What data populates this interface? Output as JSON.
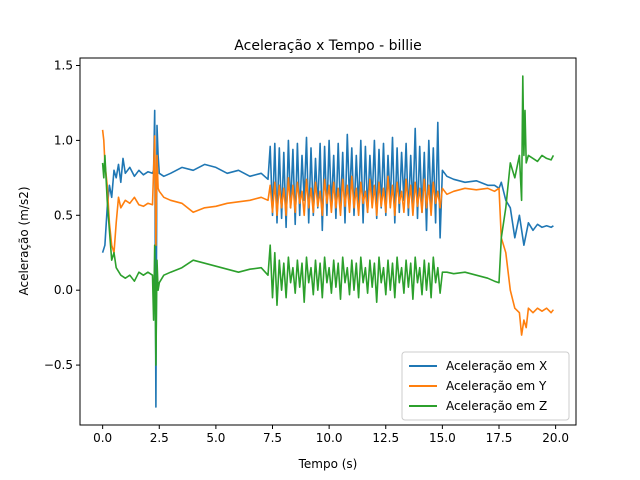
{
  "chart_data": {
    "type": "line",
    "title": "Aceleração x Tempo - billie",
    "xlabel": "Tempo (s)",
    "ylabel": "Aceleração (m/s2)",
    "xlim": [
      -1.0,
      20.9
    ],
    "ylim": [
      -0.9,
      1.55
    ],
    "xticks": [
      0.0,
      2.5,
      5.0,
      7.5,
      10.0,
      12.5,
      15.0,
      17.5,
      20.0
    ],
    "xtick_labels": [
      "0.0",
      "2.5",
      "5.0",
      "7.5",
      "10.0",
      "12.5",
      "15.0",
      "17.5",
      "20.0"
    ],
    "yticks": [
      -0.5,
      0.0,
      0.5,
      1.0,
      1.5
    ],
    "ytick_labels": [
      "−0.5",
      "0.0",
      "0.5",
      "1.0",
      "1.5"
    ],
    "grid": false,
    "legend_position": "lower-right",
    "series": [
      {
        "name": "Aceleração em X",
        "color": "#1f77b4",
        "x": [
          0.0,
          0.1,
          0.2,
          0.3,
          0.4,
          0.5,
          0.6,
          0.7,
          0.8,
          0.9,
          1.0,
          1.2,
          1.4,
          1.6,
          1.8,
          2.0,
          2.2,
          2.25,
          2.3,
          2.35,
          2.4,
          2.45,
          2.5,
          2.7,
          3.0,
          3.5,
          4.0,
          4.5,
          5.0,
          5.5,
          6.0,
          6.5,
          7.0,
          7.3,
          7.4,
          7.5,
          7.6,
          7.7,
          7.8,
          7.9,
          8.0,
          8.1,
          8.2,
          8.3,
          8.4,
          8.5,
          8.6,
          8.7,
          8.8,
          8.9,
          9.0,
          9.1,
          9.2,
          9.3,
          9.4,
          9.5,
          9.6,
          9.7,
          9.8,
          9.9,
          10.0,
          10.1,
          10.2,
          10.3,
          10.4,
          10.5,
          10.6,
          10.7,
          10.8,
          10.9,
          11.0,
          11.1,
          11.2,
          11.3,
          11.4,
          11.5,
          11.6,
          11.7,
          11.8,
          11.9,
          12.0,
          12.1,
          12.2,
          12.3,
          12.4,
          12.5,
          12.6,
          12.7,
          12.8,
          12.9,
          13.0,
          13.1,
          13.2,
          13.3,
          13.4,
          13.5,
          13.6,
          13.7,
          13.8,
          13.9,
          14.0,
          14.1,
          14.2,
          14.3,
          14.4,
          14.5,
          14.6,
          14.7,
          14.8,
          14.9,
          15.0,
          15.2,
          15.5,
          16.0,
          16.5,
          17.0,
          17.3,
          17.5,
          17.6,
          17.8,
          18.0,
          18.2,
          18.4,
          18.6,
          18.8,
          19.0,
          19.2,
          19.4,
          19.6,
          19.8,
          19.9
        ],
        "y": [
          0.25,
          0.3,
          0.55,
          0.7,
          0.62,
          0.8,
          0.75,
          0.84,
          0.72,
          0.88,
          0.78,
          0.82,
          0.76,
          0.8,
          0.77,
          0.79,
          0.78,
          0.8,
          1.2,
          -0.78,
          1.1,
          0.9,
          0.78,
          0.76,
          0.78,
          0.82,
          0.8,
          0.84,
          0.82,
          0.78,
          0.8,
          0.76,
          0.78,
          0.74,
          0.96,
          0.5,
          0.98,
          0.45,
          0.95,
          0.48,
          0.92,
          0.42,
          1.0,
          0.55,
          0.94,
          0.44,
          0.98,
          0.5,
          0.9,
          0.6,
          1.02,
          0.45,
          0.95,
          0.5,
          0.88,
          0.55,
          0.98,
          0.4,
          0.96,
          0.5,
          1.0,
          0.55,
          0.9,
          0.48,
          0.98,
          0.52,
          0.92,
          0.45,
          1.04,
          0.6,
          0.95,
          0.5,
          0.9,
          0.55,
          1.0,
          0.45,
          0.96,
          0.52,
          0.9,
          0.6,
          1.0,
          0.48,
          0.94,
          0.55,
          0.98,
          0.5,
          0.9,
          0.58,
          1.02,
          0.45,
          0.95,
          0.52,
          0.92,
          0.6,
          0.98,
          0.5,
          0.9,
          0.55,
          1.08,
          0.48,
          0.96,
          0.52,
          0.92,
          0.4,
          1.0,
          0.55,
          0.95,
          0.45,
          1.12,
          0.35,
          0.8,
          0.76,
          0.74,
          0.72,
          0.73,
          0.7,
          0.7,
          0.68,
          0.72,
          0.6,
          0.55,
          0.35,
          0.5,
          0.3,
          0.45,
          0.4,
          0.44,
          0.42,
          0.43,
          0.42,
          0.43
        ]
      },
      {
        "name": "Aceleração em Y",
        "color": "#ff7f0e",
        "x": [
          0.0,
          0.05,
          0.1,
          0.2,
          0.3,
          0.4,
          0.5,
          0.6,
          0.7,
          0.8,
          1.0,
          1.2,
          1.4,
          1.6,
          1.8,
          2.0,
          2.2,
          2.25,
          2.3,
          2.35,
          2.4,
          2.45,
          2.5,
          2.7,
          3.0,
          3.5,
          4.0,
          4.5,
          5.0,
          5.5,
          6.0,
          6.5,
          7.0,
          7.3,
          7.4,
          7.5,
          7.6,
          7.7,
          7.8,
          7.9,
          8.0,
          8.1,
          8.2,
          8.3,
          8.4,
          8.5,
          8.6,
          8.7,
          8.8,
          8.9,
          9.0,
          9.1,
          9.2,
          9.3,
          9.4,
          9.5,
          9.6,
          9.7,
          9.8,
          9.9,
          10.0,
          10.1,
          10.2,
          10.3,
          10.4,
          10.5,
          10.6,
          10.7,
          10.8,
          10.9,
          11.0,
          11.1,
          11.2,
          11.3,
          11.4,
          11.5,
          11.6,
          11.7,
          11.8,
          11.9,
          12.0,
          12.1,
          12.2,
          12.3,
          12.4,
          12.5,
          12.6,
          12.7,
          12.8,
          12.9,
          13.0,
          13.1,
          13.2,
          13.3,
          13.4,
          13.5,
          13.6,
          13.7,
          13.8,
          13.9,
          14.0,
          14.1,
          14.2,
          14.3,
          14.4,
          14.5,
          14.6,
          14.7,
          14.8,
          14.9,
          15.0,
          15.2,
          15.5,
          16.0,
          16.5,
          17.0,
          17.3,
          17.5,
          17.6,
          17.8,
          18.0,
          18.2,
          18.4,
          18.5,
          18.6,
          18.7,
          18.8,
          19.0,
          19.2,
          19.4,
          19.6,
          19.8,
          19.9
        ],
        "y": [
          1.07,
          1.0,
          0.85,
          0.7,
          0.45,
          0.3,
          0.25,
          0.45,
          0.62,
          0.55,
          0.6,
          0.58,
          0.62,
          0.57,
          0.56,
          0.58,
          0.57,
          0.8,
          1.03,
          0.3,
          0.9,
          0.68,
          0.66,
          0.62,
          0.6,
          0.58,
          0.52,
          0.55,
          0.56,
          0.58,
          0.59,
          0.6,
          0.62,
          0.6,
          0.7,
          0.52,
          0.72,
          0.5,
          0.7,
          0.55,
          0.68,
          0.5,
          0.75,
          0.55,
          0.7,
          0.52,
          0.72,
          0.58,
          0.66,
          0.5,
          0.74,
          0.55,
          0.68,
          0.52,
          0.72,
          0.56,
          0.66,
          0.5,
          0.74,
          0.58,
          0.7,
          0.52,
          0.72,
          0.55,
          0.68,
          0.5,
          0.74,
          0.56,
          0.7,
          0.52,
          0.76,
          0.55,
          0.68,
          0.5,
          0.72,
          0.58,
          0.66,
          0.52,
          0.74,
          0.55,
          0.7,
          0.5,
          0.72,
          0.56,
          0.68,
          0.52,
          0.76,
          0.55,
          0.7,
          0.5,
          0.72,
          0.58,
          0.66,
          0.52,
          0.74,
          0.55,
          0.7,
          0.5,
          0.72,
          0.56,
          0.68,
          0.52,
          0.74,
          0.55,
          0.7,
          0.5,
          0.72,
          0.58,
          0.66,
          0.55,
          0.68,
          0.64,
          0.66,
          0.68,
          0.67,
          0.68,
          0.66,
          0.68,
          0.35,
          0.25,
          0.0,
          -0.12,
          -0.15,
          -0.3,
          -0.2,
          -0.25,
          -0.12,
          -0.15,
          -0.12,
          -0.14,
          -0.12,
          -0.15,
          -0.13
        ]
      },
      {
        "name": "Aceleração em Z",
        "color": "#2ca02c",
        "x": [
          0.0,
          0.05,
          0.1,
          0.2,
          0.3,
          0.4,
          0.5,
          0.6,
          0.8,
          1.0,
          1.2,
          1.4,
          1.6,
          1.8,
          2.0,
          2.2,
          2.25,
          2.3,
          2.35,
          2.4,
          2.45,
          2.5,
          2.7,
          3.0,
          3.5,
          4.0,
          4.5,
          5.0,
          5.5,
          6.0,
          6.5,
          7.0,
          7.3,
          7.4,
          7.5,
          7.6,
          7.7,
          7.8,
          7.9,
          8.0,
          8.1,
          8.2,
          8.3,
          8.4,
          8.5,
          8.6,
          8.7,
          8.8,
          8.9,
          9.0,
          9.1,
          9.2,
          9.3,
          9.4,
          9.5,
          9.6,
          9.7,
          9.8,
          9.9,
          10.0,
          10.1,
          10.2,
          10.3,
          10.4,
          10.5,
          10.6,
          10.7,
          10.8,
          10.9,
          11.0,
          11.1,
          11.2,
          11.3,
          11.4,
          11.5,
          11.6,
          11.7,
          11.8,
          11.9,
          12.0,
          12.1,
          12.2,
          12.3,
          12.4,
          12.5,
          12.6,
          12.7,
          12.8,
          12.9,
          13.0,
          13.1,
          13.2,
          13.3,
          13.4,
          13.5,
          13.6,
          13.7,
          13.8,
          13.9,
          14.0,
          14.1,
          14.2,
          14.3,
          14.4,
          14.5,
          14.6,
          14.7,
          14.8,
          14.9,
          15.0,
          15.2,
          15.5,
          16.0,
          16.5,
          17.0,
          17.3,
          17.5,
          17.6,
          17.8,
          18.0,
          18.2,
          18.4,
          18.5,
          18.55,
          18.6,
          18.65,
          18.7,
          18.8,
          19.0,
          19.2,
          19.4,
          19.6,
          19.8,
          19.9
        ],
        "y": [
          0.85,
          0.75,
          0.9,
          0.6,
          0.4,
          0.2,
          0.25,
          0.15,
          0.1,
          0.08,
          0.1,
          0.06,
          0.12,
          0.1,
          0.12,
          0.1,
          -0.2,
          0.3,
          -0.5,
          0.2,
          0.0,
          0.05,
          0.1,
          0.12,
          0.15,
          0.2,
          0.18,
          0.16,
          0.14,
          0.12,
          0.14,
          0.15,
          0.1,
          0.3,
          -0.05,
          0.25,
          -0.1,
          0.2,
          0.0,
          0.18,
          -0.05,
          0.22,
          0.05,
          0.15,
          -0.02,
          0.2,
          0.02,
          0.18,
          -0.08,
          0.22,
          0.05,
          0.15,
          -0.03,
          0.2,
          0.0,
          0.18,
          -0.05,
          0.22,
          0.05,
          0.15,
          -0.02,
          0.2,
          0.02,
          0.18,
          -0.06,
          0.22,
          0.05,
          0.15,
          -0.03,
          0.2,
          0.0,
          0.18,
          -0.05,
          0.22,
          0.05,
          0.15,
          -0.02,
          0.2,
          0.02,
          0.18,
          -0.08,
          0.22,
          0.05,
          0.15,
          -0.03,
          0.2,
          0.0,
          0.18,
          -0.05,
          0.22,
          0.05,
          0.15,
          -0.02,
          0.2,
          0.02,
          0.18,
          -0.06,
          0.22,
          0.05,
          0.15,
          -0.03,
          0.2,
          0.0,
          0.18,
          -0.05,
          0.22,
          0.05,
          0.15,
          -0.02,
          0.12,
          0.12,
          0.11,
          0.12,
          0.1,
          0.08,
          0.06,
          0.05,
          0.35,
          0.55,
          0.85,
          0.75,
          0.9,
          0.6,
          1.43,
          0.9,
          1.2,
          0.85,
          0.9,
          0.88,
          0.86,
          0.9,
          0.88,
          0.87,
          0.9
        ]
      }
    ]
  }
}
